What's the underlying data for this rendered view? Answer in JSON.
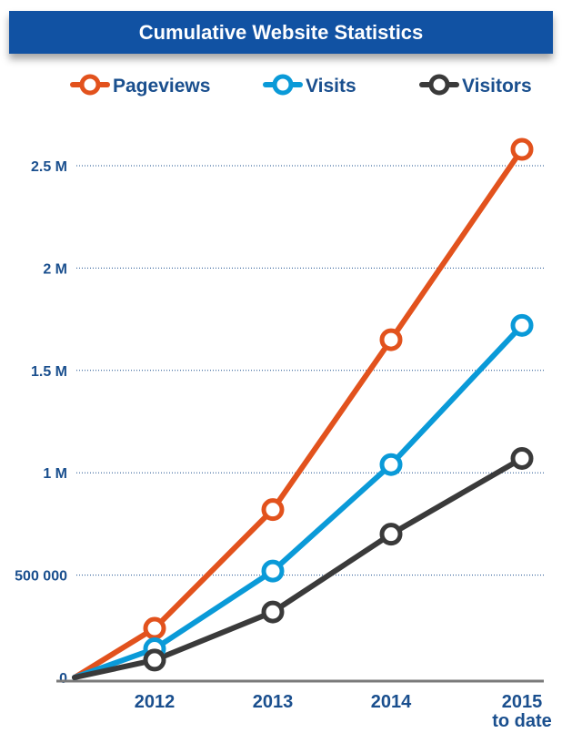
{
  "chart_data": {
    "type": "line",
    "title": "Cumulative Website Statistics",
    "categories": [
      "",
      "2012",
      "2013",
      "2014",
      "2015"
    ],
    "category_sublabels": [
      "",
      "",
      "",
      "",
      "to date"
    ],
    "y_ticks": [
      {
        "value": 0,
        "label": "0"
      },
      {
        "value": 500000,
        "label": "500 000"
      },
      {
        "value": 1000000,
        "label": "1 M"
      },
      {
        "value": 1500000,
        "label": "1.5 M"
      },
      {
        "value": 2000000,
        "label": "2 M"
      },
      {
        "value": 2500000,
        "label": "2.5 M"
      }
    ],
    "ylim": [
      0,
      2700000
    ],
    "grid": true,
    "legend_position": "top",
    "series": [
      {
        "name": "Pageviews",
        "color": "#e2521d",
        "values": [
          0,
          240000,
          820000,
          1650000,
          2580000
        ]
      },
      {
        "name": "Visits",
        "color": "#0a9ad8",
        "values": [
          0,
          140000,
          520000,
          1040000,
          1720000
        ]
      },
      {
        "name": "Visitors",
        "color": "#3a3a3a",
        "values": [
          0,
          85000,
          320000,
          700000,
          1070000
        ]
      }
    ]
  }
}
